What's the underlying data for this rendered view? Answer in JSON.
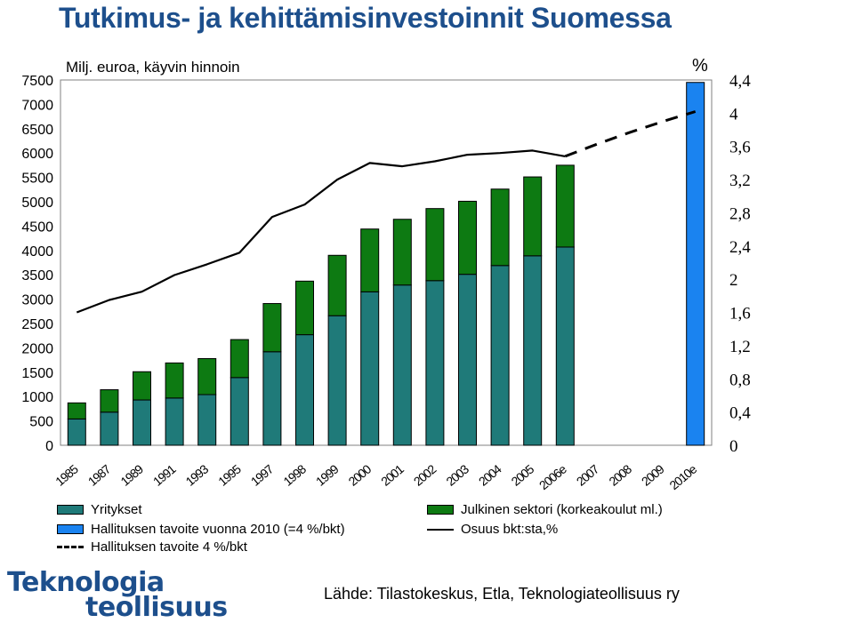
{
  "title": "Tutkimus- ja kehittämisinvestoinnit Suomessa",
  "colors": {
    "title": "#1d4f8c",
    "yritykset": "#1f7a79",
    "julkinen": "#0d7a12",
    "tavoite2010": "#1a83f0",
    "line": "#000000"
  },
  "chart_data": {
    "type": "bar",
    "ylabel": "Milj. euroa, käyvin hinnoin",
    "y2label": "%",
    "ylim": [
      0,
      7500
    ],
    "y2lim": [
      0,
      4.4
    ],
    "yticks": [
      "0",
      "500",
      "1000",
      "1500",
      "2000",
      "2500",
      "3000",
      "3500",
      "4000",
      "4500",
      "5000",
      "5500",
      "6000",
      "6500",
      "7000",
      "7500"
    ],
    "y2ticks": [
      "0",
      "0,4",
      "0,8",
      "1,2",
      "1,6",
      "2",
      "2,4",
      "2,8",
      "3,2",
      "3,6",
      "4",
      "4,4"
    ],
    "categories": [
      "1985",
      "1987",
      "1989",
      "1991",
      "1993",
      "1995",
      "1997",
      "1998",
      "1999",
      "2000",
      "2001",
      "2002",
      "2003",
      "2004",
      "2005",
      "2006e",
      "2007",
      "2008",
      "2009",
      "2010e"
    ],
    "series": [
      {
        "name": "Yritykset",
        "type": "stacked-bar",
        "values": [
          540,
          680,
          930,
          970,
          1040,
          1390,
          1920,
          2270,
          2660,
          3150,
          3290,
          3380,
          3510,
          3690,
          3890,
          4070,
          null,
          null,
          null,
          null
        ]
      },
      {
        "name": "Julkinen sektori (korkeakoulut ml.)",
        "type": "stacked-bar",
        "values": [
          330,
          460,
          580,
          720,
          740,
          780,
          990,
          1100,
          1240,
          1290,
          1350,
          1480,
          1500,
          1570,
          1620,
          1680,
          null,
          null,
          null,
          null
        ]
      },
      {
        "name": "Hallituksen tavoite vuonna 2010 (=4 %/bkt)",
        "type": "bar",
        "values": [
          null,
          null,
          null,
          null,
          null,
          null,
          null,
          null,
          null,
          null,
          null,
          null,
          null,
          null,
          null,
          null,
          null,
          null,
          null,
          7450
        ]
      },
      {
        "name": "Osuus bkt:sta,%",
        "type": "line",
        "axis": "right",
        "values": [
          1.6,
          1.75,
          1.85,
          2.05,
          2.18,
          2.32,
          2.75,
          2.9,
          3.2,
          3.4,
          3.36,
          3.42,
          3.5,
          3.52,
          3.55,
          3.48,
          null,
          null,
          null,
          null
        ]
      },
      {
        "name": "Hallituksen tavoite 4 %/bkt",
        "type": "dashed-line",
        "axis": "right",
        "values": [
          null,
          null,
          null,
          null,
          null,
          null,
          null,
          null,
          null,
          null,
          null,
          null,
          null,
          null,
          null,
          3.48,
          3.63,
          3.77,
          3.9,
          4.02
        ]
      }
    ]
  },
  "legend": {
    "yritykset": "Yritykset",
    "julkinen": "Julkinen sektori (korkeakoulut ml.)",
    "tavoite2010": "Hallituksen tavoite vuonna 2010 (=4 %/bkt)",
    "osuus": "Osuus bkt:sta,%",
    "tavoite4": "Hallituksen tavoite 4 %/bkt"
  },
  "logo": {
    "line1": "Teknologia",
    "line2": "teollisuus"
  },
  "source": "Lähde: Tilastokeskus, Etla, Teknologiateollisuus ry"
}
